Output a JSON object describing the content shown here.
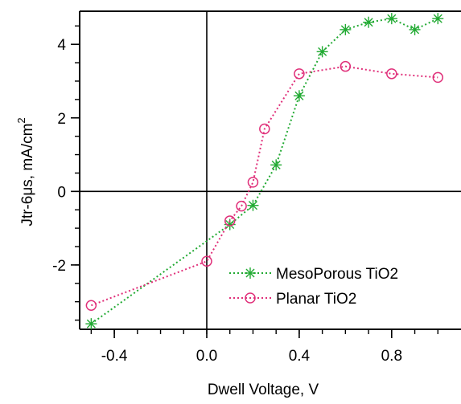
{
  "chart_data": {
    "type": "line",
    "xlabel": "Dwell Voltage,  V",
    "ylabel": {
      "base": "Jtr-6μs, mA/cm",
      "sup": "2"
    },
    "xlim": [
      -0.55,
      1.1
    ],
    "ylim": [
      -3.75,
      4.9
    ],
    "x_ticks": [
      {
        "value": -0.4,
        "label": "-0.4"
      },
      {
        "value": 0.0,
        "label": "0.0"
      },
      {
        "value": 0.4,
        "label": "0.4"
      },
      {
        "value": 0.8,
        "label": "0.8"
      }
    ],
    "x_minor_step": 0.1,
    "y_ticks": [
      {
        "value": -2,
        "label": "-2"
      },
      {
        "value": 0,
        "label": "0"
      },
      {
        "value": 2,
        "label": "2"
      },
      {
        "value": 4,
        "label": "4"
      }
    ],
    "y_minor_step": 0.5,
    "zero_lines": true,
    "grid": false,
    "legend_position": "bottom-right",
    "series": [
      {
        "name": "MesoPorous TiO2",
        "color": "#22aa33",
        "line_style": "dotted",
        "marker": "asterisk",
        "x": [
          -0.5,
          0.1,
          0.2,
          0.3,
          0.4,
          0.5,
          0.6,
          0.7,
          0.8,
          0.9,
          1.0
        ],
        "y": [
          -3.6,
          -0.9,
          -0.38,
          0.72,
          2.6,
          3.8,
          4.4,
          4.6,
          4.7,
          4.4,
          4.7
        ]
      },
      {
        "name": "Planar TiO2",
        "color": "#e0307a",
        "line_style": "dotted",
        "marker": "circle",
        "x": [
          -0.5,
          0.0,
          0.1,
          0.15,
          0.2,
          0.25,
          0.4,
          0.6,
          0.8,
          1.0
        ],
        "y": [
          -3.1,
          -1.9,
          -0.8,
          -0.4,
          0.25,
          1.7,
          3.2,
          3.4,
          3.2,
          3.1
        ]
      }
    ]
  }
}
